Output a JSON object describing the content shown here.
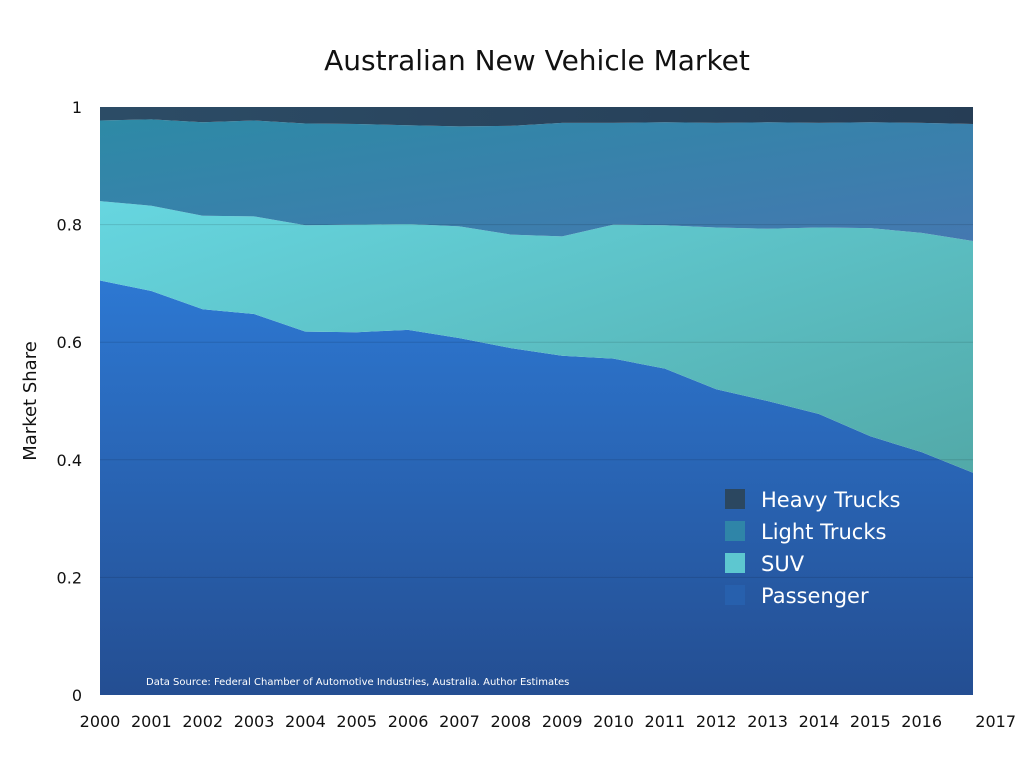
{
  "chart_data": {
    "type": "area",
    "stacked": true,
    "title": "Australian New Vehicle Market",
    "ylabel": "Market Share",
    "xlabel": "",
    "x": [
      "2000",
      "2001",
      "2002",
      "2003",
      "2004",
      "2005",
      "2006",
      "2007",
      "2008",
      "2009",
      "2010",
      "2011",
      "2012",
      "2013",
      "2014",
      "2015",
      "2016",
      "2017"
    ],
    "ylim": [
      0,
      1
    ],
    "yticks": [
      "0",
      "0.2",
      "0.4",
      "0.6",
      "0.8",
      "1"
    ],
    "grid": true,
    "legend_position": "lower-right",
    "series": [
      {
        "name": "Passenger",
        "color": "#2b6fc6",
        "values": [
          0.705,
          0.687,
          0.656,
          0.648,
          0.618,
          0.617,
          0.621,
          0.607,
          0.59,
          0.577,
          0.572,
          0.555,
          0.52,
          0.5,
          0.478,
          0.44,
          0.413,
          0.378
        ]
      },
      {
        "name": "SUV",
        "color": "#5ec8d4",
        "values": [
          0.135,
          0.145,
          0.159,
          0.166,
          0.181,
          0.183,
          0.18,
          0.19,
          0.193,
          0.203,
          0.228,
          0.244,
          0.275,
          0.293,
          0.317,
          0.354,
          0.373,
          0.394
        ]
      },
      {
        "name": "Light Trucks",
        "color": "#3a86b0",
        "values": [
          0.137,
          0.147,
          0.159,
          0.163,
          0.173,
          0.171,
          0.168,
          0.17,
          0.185,
          0.193,
          0.173,
          0.175,
          0.178,
          0.181,
          0.178,
          0.18,
          0.187,
          0.199
        ]
      },
      {
        "name": "Heavy Trucks",
        "color": "#2b4a66",
        "values": [
          0.023,
          0.021,
          0.026,
          0.023,
          0.028,
          0.029,
          0.031,
          0.033,
          0.032,
          0.027,
          0.027,
          0.026,
          0.027,
          0.026,
          0.027,
          0.026,
          0.027,
          0.029
        ]
      }
    ],
    "annotation": "Data Source: Federal Chamber of Automotive Industries, Australia.  Author Estimates"
  }
}
